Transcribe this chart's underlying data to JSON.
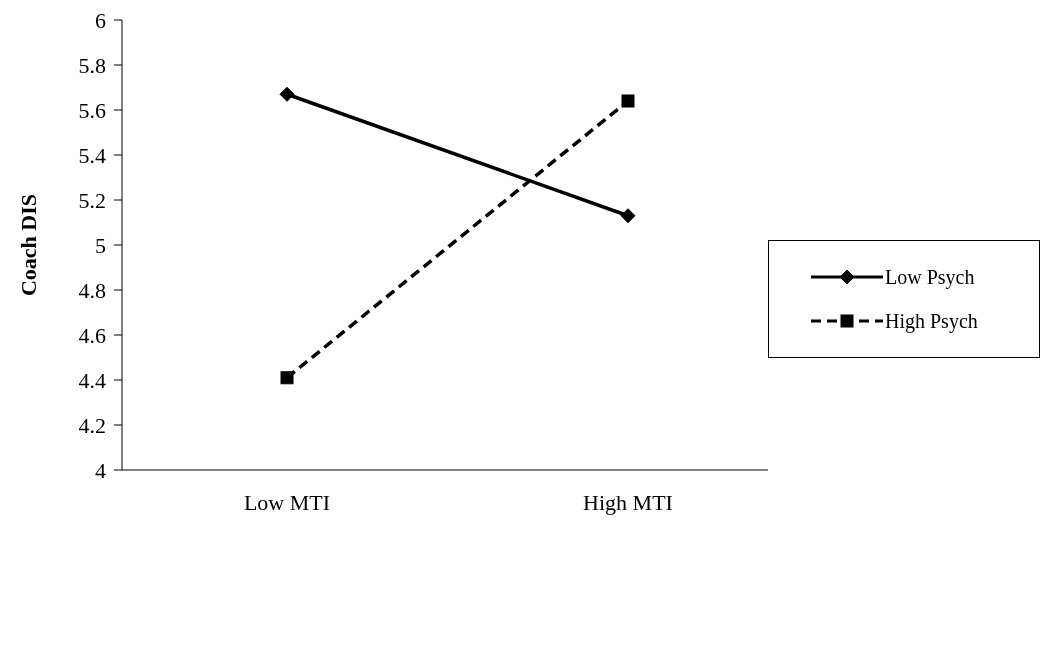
{
  "chart_data": {
    "type": "line",
    "ylabel": "Coach DIS",
    "categories": [
      "Low MTI",
      "High MTI"
    ],
    "series": [
      {
        "name": "Low Psych",
        "color": "#000000",
        "values": [
          5.67,
          5.13
        ],
        "marker": "diamond",
        "line_style": "solid"
      },
      {
        "name": "High Psych",
        "color": "#000000",
        "values": [
          4.41,
          5.64
        ],
        "marker": "square",
        "line_style": "dashed"
      }
    ],
    "ylim": [
      4,
      6
    ],
    "yticks": [
      4,
      4.2,
      4.4,
      4.6,
      4.8,
      5,
      5.2,
      5.4,
      5.6,
      5.8,
      6
    ],
    "grid": false,
    "legend": "right"
  }
}
